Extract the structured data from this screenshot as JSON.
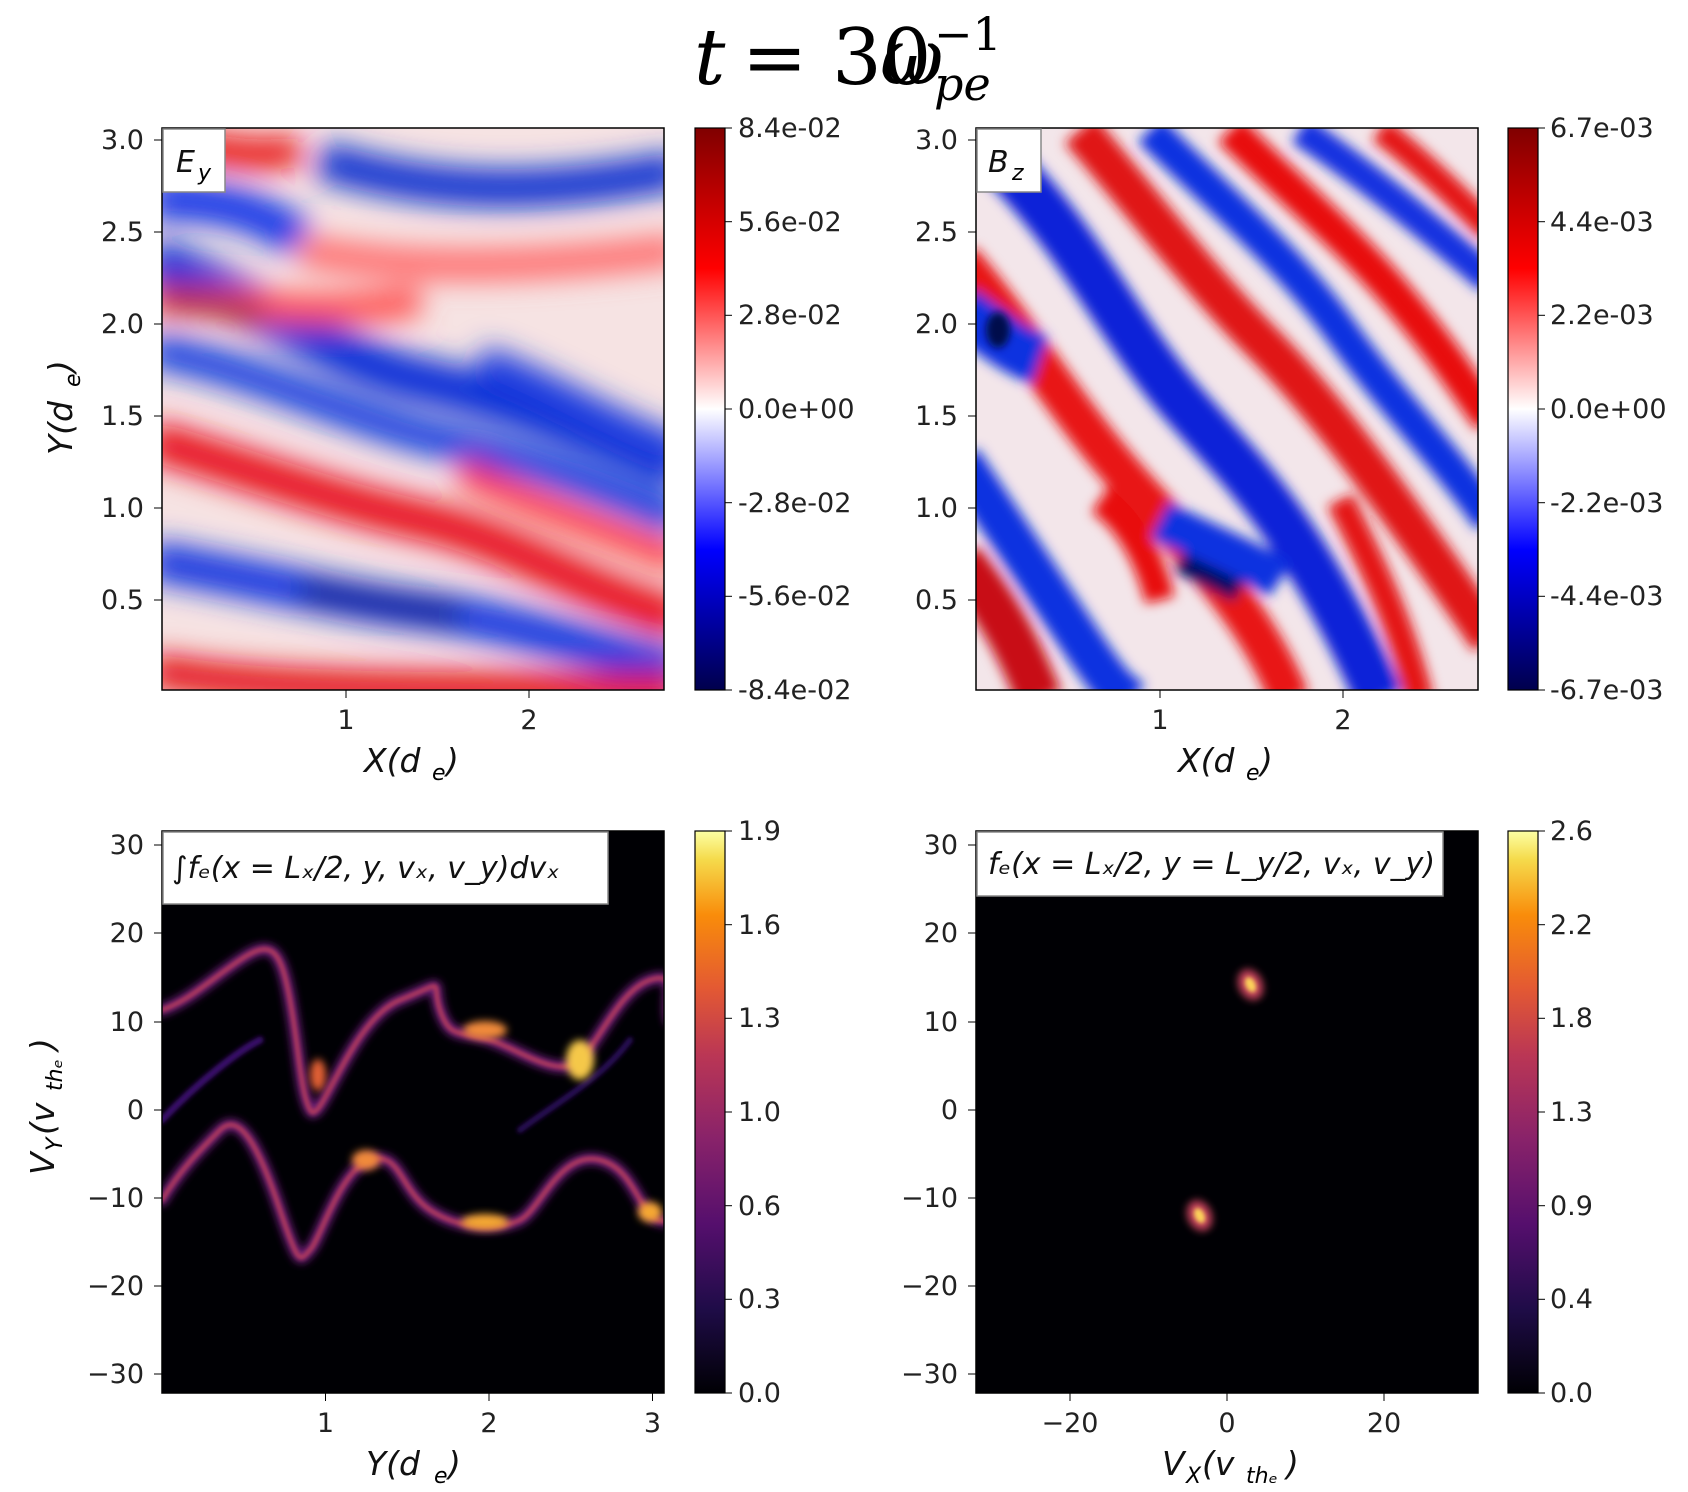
{
  "figure": {
    "title": {
      "t": "t",
      "eq": "= 30",
      "omega": "ω",
      "sub": "pe",
      "sup": "−1"
    }
  },
  "chart_data": [
    {
      "type": "heatmap",
      "panel": "top-left",
      "annotation": {
        "main": "E",
        "sub": "y"
      },
      "xlabel": {
        "main": "X(d",
        "sub": "e",
        "end": ")"
      },
      "ylabel": {
        "main": "Y(d",
        "sub": "e",
        "end": ")"
      },
      "xlim": [
        0,
        2.75
      ],
      "ylim": [
        0,
        3.07
      ],
      "xticks": [
        1,
        2
      ],
      "xticklabels": [
        "1",
        "2"
      ],
      "yticks": [
        0.5,
        1.0,
        1.5,
        2.0,
        2.5,
        3.0
      ],
      "yticklabels": [
        "0.5",
        "1.0",
        "1.5",
        "2.0",
        "2.5",
        "3.0"
      ],
      "colormap": "seismic",
      "colorbar": {
        "ticks": [
          "8.4e-02",
          "5.6e-02",
          "2.8e-02",
          "0.0e+00",
          "-2.8e-02",
          "-5.6e-02",
          "-8.4e-02"
        ],
        "range": [
          -0.084,
          0.084
        ]
      }
    },
    {
      "type": "heatmap",
      "panel": "top-right",
      "annotation": {
        "main": "B",
        "sub": "z"
      },
      "xlabel": {
        "main": "X(d",
        "sub": "e",
        "end": ")"
      },
      "xlim": [
        0,
        2.75
      ],
      "ylim": [
        0,
        3.07
      ],
      "xticks": [
        1,
        2
      ],
      "xticklabels": [
        "1",
        "2"
      ],
      "yticks": [
        0.5,
        1.0,
        1.5,
        2.0,
        2.5,
        3.0
      ],
      "yticklabels": [
        "0.5",
        "1.0",
        "1.5",
        "2.0",
        "2.5",
        "3.0"
      ],
      "colormap": "seismic",
      "colorbar": {
        "ticks": [
          "6.7e-03",
          "4.4e-03",
          "2.2e-03",
          "0.0e+00",
          "-2.2e-03",
          "-4.4e-03",
          "-6.7e-03"
        ],
        "range": [
          -0.0067,
          0.0067
        ]
      }
    },
    {
      "type": "heatmap",
      "panel": "bottom-left",
      "annotation": {
        "text": "∫fₑ(x = Lₓ/2, y, vₓ, v_y)dvₓ"
      },
      "xlabel": {
        "main": "Y(d",
        "sub": "e",
        "end": ")"
      },
      "ylabel": {
        "main": "V",
        "sub": "Y",
        "mid": "(v",
        "sub2": "thₑ",
        "end": ")"
      },
      "xlim": [
        0,
        3.07
      ],
      "ylim": [
        -32,
        32
      ],
      "xticks": [
        1,
        2,
        3
      ],
      "xticklabels": [
        "1",
        "2",
        "3"
      ],
      "yticks": [
        30,
        20,
        10,
        0,
        -10,
        -20,
        -30
      ],
      "yticklabels": [
        "30",
        "20",
        "10",
        "0",
        "−10",
        "−20",
        "−30"
      ],
      "colormap": "inferno",
      "colorbar": {
        "ticks": [
          "1.9",
          "1.6",
          "1.3",
          "1.0",
          "0.6",
          "0.3",
          "0.0"
        ],
        "range": [
          0,
          1.9
        ]
      }
    },
    {
      "type": "heatmap",
      "panel": "bottom-right",
      "annotation": {
        "text": "fₑ(x = Lₓ/2, y = L_y/2, vₓ, v_y)"
      },
      "xlabel": {
        "main": "V",
        "sub": "X",
        "mid": "(v",
        "sub2": "thₑ",
        "end": ")"
      },
      "xlim": [
        -32,
        32
      ],
      "ylim": [
        -32,
        32
      ],
      "xticks": [
        -20,
        0,
        20
      ],
      "xticklabels": [
        "−20",
        "0",
        "20"
      ],
      "yticks": [
        30,
        20,
        10,
        0,
        -10,
        -20,
        -30
      ],
      "yticklabels": [
        "30",
        "20",
        "10",
        "0",
        "−10",
        "−20",
        "−30"
      ],
      "colormap": "inferno",
      "colorbar": {
        "ticks": [
          "2.6",
          "2.2",
          "1.8",
          "1.3",
          "0.9",
          "0.4",
          "0.0"
        ],
        "range": [
          0,
          2.6
        ]
      },
      "peaks": [
        {
          "vx": 3.0,
          "vy": 14.5
        },
        {
          "vx": -3.5,
          "vy": -11.8
        }
      ]
    }
  ]
}
